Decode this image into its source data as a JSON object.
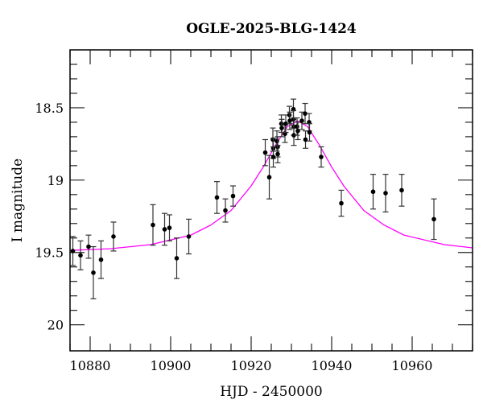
{
  "chart_data": {
    "type": "scatter",
    "title": "OGLE-2025-BLG-1424",
    "xlabel": "HJD - 2450000",
    "ylabel": "I magnitude",
    "xlim": [
      10875,
      10975
    ],
    "ylim": [
      18.1,
      20.18
    ],
    "y_inverted": true,
    "grid": false,
    "x_ticks": [
      "10880",
      "10900",
      "10920",
      "10940",
      "10960"
    ],
    "y_ticks": [
      "18.5",
      "19",
      "19.5",
      "20"
    ],
    "colors": {
      "points": "#000000",
      "errorbars": "#333333",
      "model": "#ff00ff",
      "axes": "#000000"
    },
    "series": [
      {
        "kind": "points-with-errorbars",
        "points": [
          {
            "x": 10875.7,
            "y": 19.49,
            "err": 0.1
          },
          {
            "x": 10877.6,
            "y": 19.52,
            "err": 0.1
          },
          {
            "x": 10879.6,
            "y": 19.46,
            "err": 0.08
          },
          {
            "x": 10880.8,
            "y": 19.64,
            "err": 0.18
          },
          {
            "x": 10882.7,
            "y": 19.55,
            "err": 0.13
          },
          {
            "x": 10885.8,
            "y": 19.39,
            "err": 0.1
          },
          {
            "x": 10895.6,
            "y": 19.31,
            "err": 0.14
          },
          {
            "x": 10898.5,
            "y": 19.34,
            "err": 0.11
          },
          {
            "x": 10899.7,
            "y": 19.33,
            "err": 0.09
          },
          {
            "x": 10901.5,
            "y": 19.54,
            "err": 0.14
          },
          {
            "x": 10904.5,
            "y": 19.39,
            "err": 0.12
          },
          {
            "x": 10911.5,
            "y": 19.12,
            "err": 0.11
          },
          {
            "x": 10913.6,
            "y": 19.21,
            "err": 0.08
          },
          {
            "x": 10915.5,
            "y": 19.11,
            "err": 0.07
          },
          {
            "x": 10923.5,
            "y": 18.81,
            "err": 0.09
          },
          {
            "x": 10924.5,
            "y": 18.98,
            "err": 0.15
          },
          {
            "x": 10925.4,
            "y": 18.72,
            "err": 0.08
          },
          {
            "x": 10925.5,
            "y": 18.78,
            "err": 0.07
          },
          {
            "x": 10925.5,
            "y": 18.84,
            "err": 0.07
          },
          {
            "x": 10926.4,
            "y": 18.73,
            "err": 0.07
          },
          {
            "x": 10926.6,
            "y": 18.77,
            "err": 0.07
          },
          {
            "x": 10926.6,
            "y": 18.82,
            "err": 0.06
          },
          {
            "x": 10927.5,
            "y": 18.61,
            "err": 0.06
          },
          {
            "x": 10927.6,
            "y": 18.64,
            "err": 0.06
          },
          {
            "x": 10928.4,
            "y": 18.68,
            "err": 0.06
          },
          {
            "x": 10928.6,
            "y": 18.61,
            "err": 0.06
          },
          {
            "x": 10929.5,
            "y": 18.55,
            "err": 0.06
          },
          {
            "x": 10929.6,
            "y": 18.59,
            "err": 0.06
          },
          {
            "x": 10930.5,
            "y": 18.51,
            "err": 0.07
          },
          {
            "x": 10930.5,
            "y": 18.58,
            "err": 0.06
          },
          {
            "x": 10930.6,
            "y": 18.63,
            "err": 0.06
          },
          {
            "x": 10930.6,
            "y": 18.69,
            "err": 0.07
          },
          {
            "x": 10931.4,
            "y": 18.63,
            "err": 0.06
          },
          {
            "x": 10931.6,
            "y": 18.66,
            "err": 0.06
          },
          {
            "x": 10932.6,
            "y": 18.59,
            "err": 0.06
          },
          {
            "x": 10933.4,
            "y": 18.54,
            "err": 0.07
          },
          {
            "x": 10933.5,
            "y": 18.72,
            "err": 0.06
          },
          {
            "x": 10934.4,
            "y": 18.6,
            "err": 0.06
          },
          {
            "x": 10934.5,
            "y": 18.67,
            "err": 0.06
          },
          {
            "x": 10937.4,
            "y": 18.84,
            "err": 0.07
          },
          {
            "x": 10942.4,
            "y": 19.16,
            "err": 0.09
          },
          {
            "x": 10950.3,
            "y": 19.08,
            "err": 0.12
          },
          {
            "x": 10953.4,
            "y": 19.09,
            "err": 0.13
          },
          {
            "x": 10957.4,
            "y": 19.07,
            "err": 0.11
          },
          {
            "x": 10965.4,
            "y": 19.27,
            "err": 0.14
          }
        ]
      },
      {
        "kind": "model-line",
        "x": [
          10875,
          10885,
          10895,
          10905,
          10910,
          10915,
          10920,
          10923,
          10926,
          10929,
          10931.5,
          10934,
          10937,
          10940,
          10943,
          10948,
          10953,
          10958,
          10968,
          10975
        ],
        "y": [
          19.486,
          19.474,
          19.446,
          19.38,
          19.31,
          19.21,
          19.04,
          18.91,
          18.76,
          18.63,
          18.59,
          18.63,
          18.76,
          18.91,
          19.04,
          19.21,
          19.31,
          19.38,
          19.446,
          19.468
        ]
      }
    ]
  }
}
